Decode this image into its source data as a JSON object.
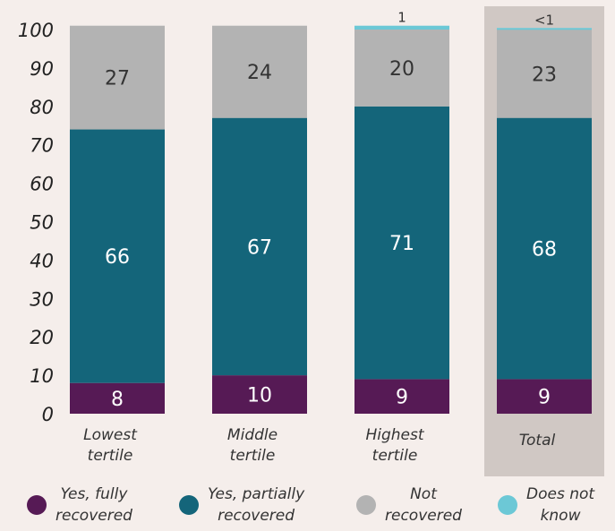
{
  "chart_data": {
    "type": "bar",
    "stacked": true,
    "title": "",
    "xlabel": "",
    "ylabel": "",
    "ylim": [
      0,
      100
    ],
    "yticks": [
      0,
      10,
      20,
      30,
      40,
      50,
      60,
      70,
      80,
      90,
      100
    ],
    "grid": false,
    "legend_position": "bottom",
    "categories": [
      [
        "Lowest",
        "tertile"
      ],
      [
        "Middle",
        "tertile"
      ],
      [
        "Highest",
        "tertile"
      ],
      [
        "Total"
      ]
    ],
    "highlight_category": "Total",
    "series": [
      {
        "name": [
          "Yes, fully",
          "recovered"
        ],
        "color": "#561a55",
        "label_color": "#ffffff",
        "values": [
          8,
          10,
          9,
          9
        ],
        "labels": [
          "8",
          "10",
          "9",
          "9"
        ]
      },
      {
        "name": [
          "Yes, partially",
          "recovered"
        ],
        "color": "#14657a",
        "label_color": "#ffffff",
        "values": [
          66,
          67,
          71,
          68
        ],
        "labels": [
          "66",
          "67",
          "71",
          "68"
        ]
      },
      {
        "name": [
          "Not",
          "recovered"
        ],
        "color": "#b3b3b3",
        "label_color": "#333333",
        "values": [
          27,
          24,
          20,
          23
        ],
        "labels": [
          "27",
          "24",
          "20",
          "23"
        ]
      },
      {
        "name": [
          "Does not",
          "know"
        ],
        "color": "#6cc8d6",
        "label_color": "#333333",
        "values": [
          0,
          0,
          1,
          0.4
        ],
        "labels": [
          "",
          "",
          "1",
          "<1"
        ]
      }
    ]
  }
}
